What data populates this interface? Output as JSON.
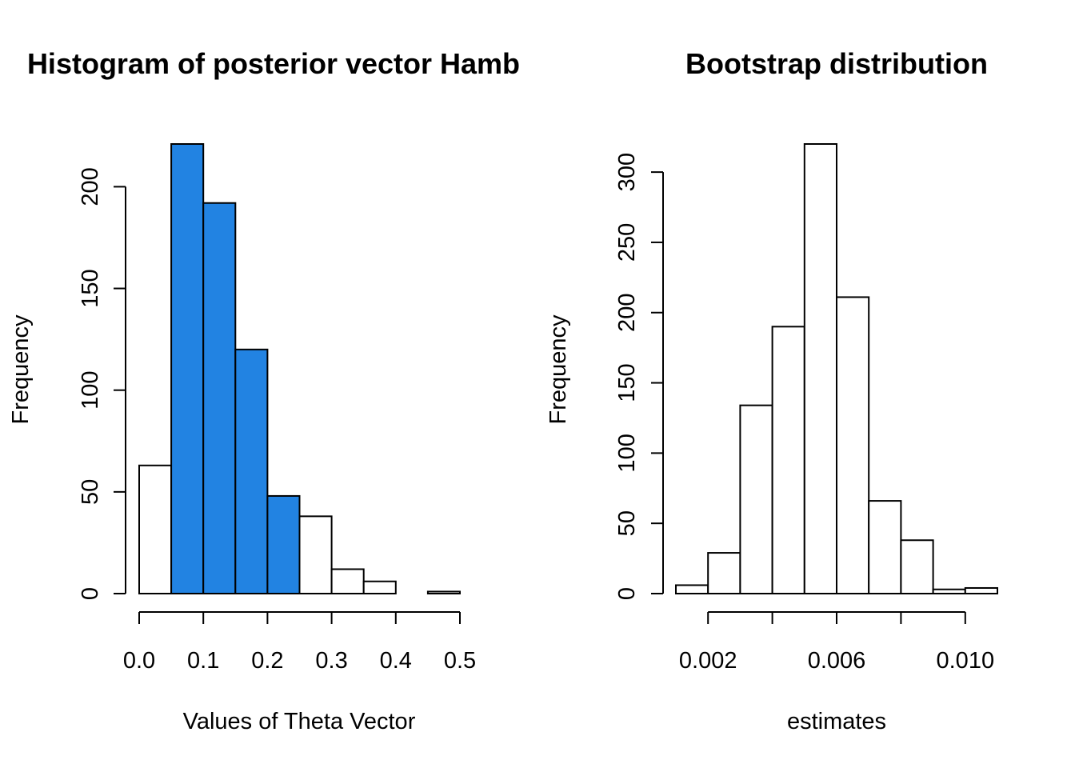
{
  "chart_data": [
    {
      "type": "bar",
      "title": "Histogram of posterior vector Hamb",
      "xlabel": "Values of Theta Vector",
      "ylabel": "Frequency",
      "bin_edges": [
        0.0,
        0.05,
        0.1,
        0.15,
        0.2,
        0.25,
        0.3,
        0.35,
        0.4,
        0.45,
        0.5
      ],
      "values": [
        63,
        221,
        192,
        120,
        48,
        38,
        12,
        6,
        0,
        1
      ],
      "highlight_bins": [
        1,
        2,
        3,
        4
      ],
      "highlight_color": "#2283e2",
      "base_color": "#ffffff",
      "x_ticks": [
        0.0,
        0.1,
        0.2,
        0.3,
        0.4,
        0.5
      ],
      "x_tick_labels": [
        "0.0",
        "0.1",
        "0.2",
        "0.3",
        "0.4",
        "0.5"
      ],
      "y_ticks": [
        0,
        50,
        100,
        150,
        200
      ],
      "y_tick_labels": [
        "0",
        "50",
        "100",
        "150",
        "200"
      ],
      "xlim": [
        0.0,
        0.5
      ],
      "ylim": [
        0,
        221
      ],
      "grid": false
    },
    {
      "type": "bar",
      "title": "Bootstrap distribution",
      "xlabel": "estimates",
      "ylabel": "Frequency",
      "bin_edges": [
        0.001,
        0.002,
        0.003,
        0.004,
        0.005,
        0.006,
        0.007,
        0.008,
        0.009,
        0.01,
        0.011
      ],
      "values": [
        6,
        29,
        134,
        190,
        320,
        211,
        66,
        38,
        3,
        4
      ],
      "highlight_bins": [],
      "highlight_color": "#2283e2",
      "base_color": "#ffffff",
      "x_ticks": [
        0.002,
        0.004,
        0.006,
        0.008,
        0.01
      ],
      "x_tick_labels": [
        "0.002",
        "",
        "0.006",
        "",
        "0.010"
      ],
      "y_ticks": [
        0,
        50,
        100,
        150,
        200,
        250,
        300
      ],
      "y_tick_labels": [
        "0",
        "50",
        "100",
        "150",
        "200",
        "250",
        "300"
      ],
      "xlim": [
        0.001,
        0.011
      ],
      "ylim": [
        0,
        320
      ],
      "grid": false
    }
  ]
}
